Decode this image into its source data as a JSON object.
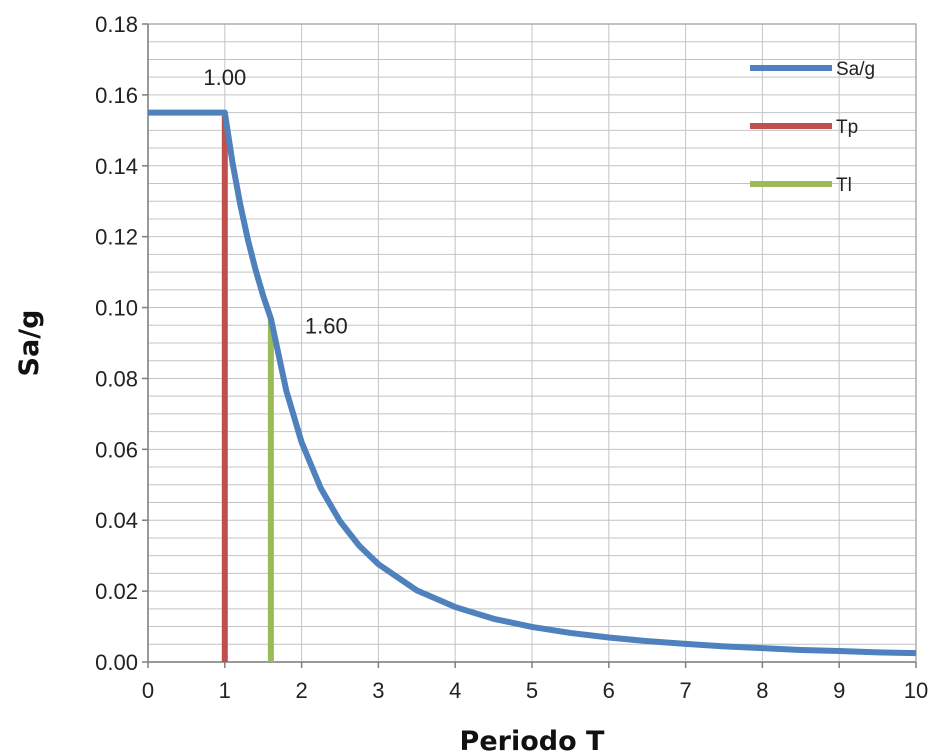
{
  "chart_data": {
    "type": "line",
    "xlabel": "Periodo T",
    "ylabel": "Sa/g",
    "xlim": [
      0,
      10
    ],
    "ylim": [
      0,
      0.18
    ],
    "xticks": [
      0,
      1,
      2,
      3,
      4,
      5,
      6,
      7,
      8,
      9,
      10
    ],
    "yticks": [
      0.0,
      0.02,
      0.04,
      0.06,
      0.08,
      0.1,
      0.12,
      0.14,
      0.16,
      0.18
    ],
    "xtick_labels": [
      "0",
      "1",
      "2",
      "3",
      "4",
      "5",
      "6",
      "7",
      "8",
      "9",
      "10"
    ],
    "ytick_labels": [
      "0.00",
      "0.02",
      "0.04",
      "0.06",
      "0.08",
      "0.10",
      "0.12",
      "0.14",
      "0.16",
      "0.18"
    ],
    "grid": true,
    "legend_position": "top-right",
    "series": [
      {
        "name": "Sa/g",
        "color": "#4f81bd",
        "x": [
          0,
          1.0,
          1.1,
          1.2,
          1.3,
          1.4,
          1.5,
          1.6,
          1.8,
          2.0,
          2.25,
          2.5,
          2.75,
          3.0,
          3.5,
          4.0,
          4.5,
          5.0,
          5.5,
          6.0,
          6.5,
          7.0,
          7.5,
          8.0,
          8.5,
          9.0,
          9.5,
          10.0
        ],
        "y": [
          0.155,
          0.155,
          0.1409,
          0.1292,
          0.1192,
          0.1107,
          0.1033,
          0.0969,
          0.0766,
          0.062,
          0.049,
          0.0397,
          0.0328,
          0.0276,
          0.0202,
          0.0155,
          0.0122,
          0.0099,
          0.0082,
          0.0069,
          0.0059,
          0.0051,
          0.0044,
          0.0039,
          0.0034,
          0.0031,
          0.0027,
          0.0025
        ]
      },
      {
        "name": "Tp",
        "color": "#c0504d",
        "x": [
          1.0,
          1.0
        ],
        "y": [
          0.0,
          0.155
        ]
      },
      {
        "name": "Tl",
        "color": "#9bbb59",
        "x": [
          1.6,
          1.6
        ],
        "y": [
          0.0,
          0.0969
        ]
      }
    ],
    "annotations": [
      {
        "text": "1.00",
        "x": 1.0,
        "y": 0.165
      },
      {
        "text": "1.60",
        "x": 1.6,
        "y": 0.095
      }
    ]
  }
}
